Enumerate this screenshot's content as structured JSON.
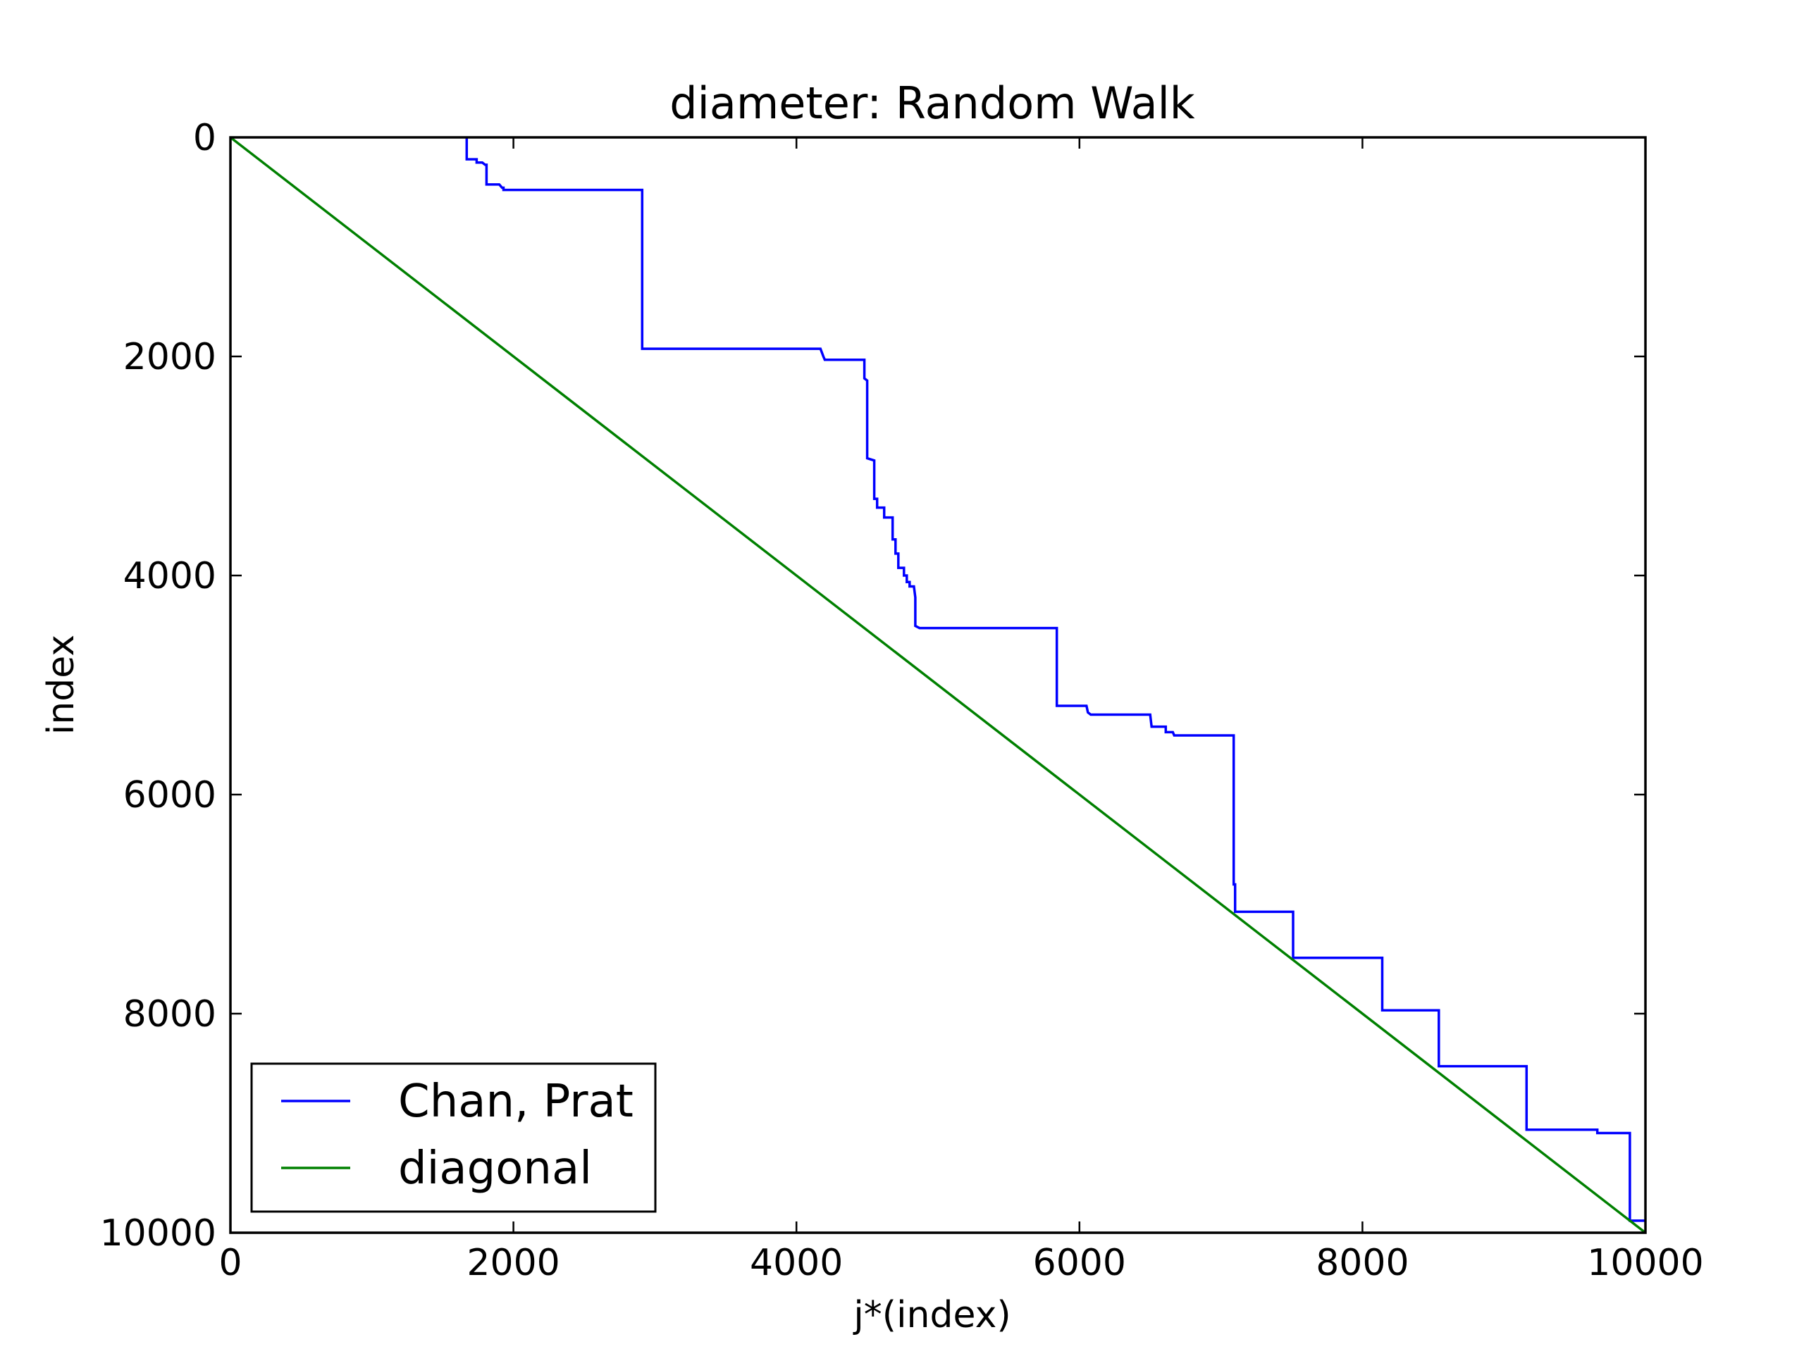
{
  "chart_data": {
    "type": "line",
    "title": "diameter: Random Walk",
    "xlabel": "j*(index)",
    "ylabel": "index",
    "xlim": [
      0,
      10000
    ],
    "ylim": [
      0,
      10000
    ],
    "y_inverted": true,
    "grid": false,
    "legend_position": "lower-left",
    "x_ticks": [
      "0",
      "2000",
      "4000",
      "6000",
      "8000",
      "10000"
    ],
    "y_ticks": [
      "0",
      "2000",
      "4000",
      "6000",
      "8000",
      "10000"
    ],
    "series": [
      {
        "name": "Chan, Prat",
        "color": "#0000ff",
        "style": "step",
        "points": [
          [
            1670,
            0
          ],
          [
            1670,
            200
          ],
          [
            1740,
            200
          ],
          [
            1740,
            230
          ],
          [
            1780,
            230
          ],
          [
            1800,
            250
          ],
          [
            1810,
            250
          ],
          [
            1810,
            430
          ],
          [
            1900,
            430
          ],
          [
            1920,
            460
          ],
          [
            1930,
            460
          ],
          [
            1930,
            480
          ],
          [
            2910,
            480
          ],
          [
            2910,
            1930
          ],
          [
            4170,
            1930
          ],
          [
            4190,
            2000
          ],
          [
            4200,
            2030
          ],
          [
            4480,
            2030
          ],
          [
            4480,
            2200
          ],
          [
            4500,
            2220
          ],
          [
            4500,
            2930
          ],
          [
            4550,
            2950
          ],
          [
            4550,
            3300
          ],
          [
            4570,
            3300
          ],
          [
            4570,
            3380
          ],
          [
            4620,
            3380
          ],
          [
            4620,
            3470
          ],
          [
            4680,
            3470
          ],
          [
            4680,
            3670
          ],
          [
            4700,
            3670
          ],
          [
            4700,
            3800
          ],
          [
            4720,
            3800
          ],
          [
            4720,
            3930
          ],
          [
            4760,
            3930
          ],
          [
            4760,
            4000
          ],
          [
            4780,
            4000
          ],
          [
            4780,
            4060
          ],
          [
            4800,
            4060
          ],
          [
            4800,
            4100
          ],
          [
            4830,
            4100
          ],
          [
            4840,
            4200
          ],
          [
            4840,
            4460
          ],
          [
            4870,
            4480
          ],
          [
            5840,
            4480
          ],
          [
            5840,
            5190
          ],
          [
            6050,
            5190
          ],
          [
            6060,
            5250
          ],
          [
            6080,
            5270
          ],
          [
            6500,
            5270
          ],
          [
            6510,
            5380
          ],
          [
            6610,
            5380
          ],
          [
            6610,
            5430
          ],
          [
            6660,
            5430
          ],
          [
            6670,
            5460
          ],
          [
            7090,
            5460
          ],
          [
            7090,
            6820
          ],
          [
            7100,
            6820
          ],
          [
            7100,
            7070
          ],
          [
            7510,
            7070
          ],
          [
            7510,
            7490
          ],
          [
            8140,
            7490
          ],
          [
            8140,
            7970
          ],
          [
            8540,
            7970
          ],
          [
            8540,
            8480
          ],
          [
            9160,
            8480
          ],
          [
            9160,
            9060
          ],
          [
            9660,
            9060
          ],
          [
            9660,
            9090
          ],
          [
            9890,
            9090
          ],
          [
            9890,
            9890
          ],
          [
            10000,
            9890
          ]
        ]
      },
      {
        "name": "diagonal",
        "color": "#008000",
        "style": "line",
        "points": [
          [
            0,
            0
          ],
          [
            10000,
            10000
          ]
        ]
      }
    ]
  }
}
